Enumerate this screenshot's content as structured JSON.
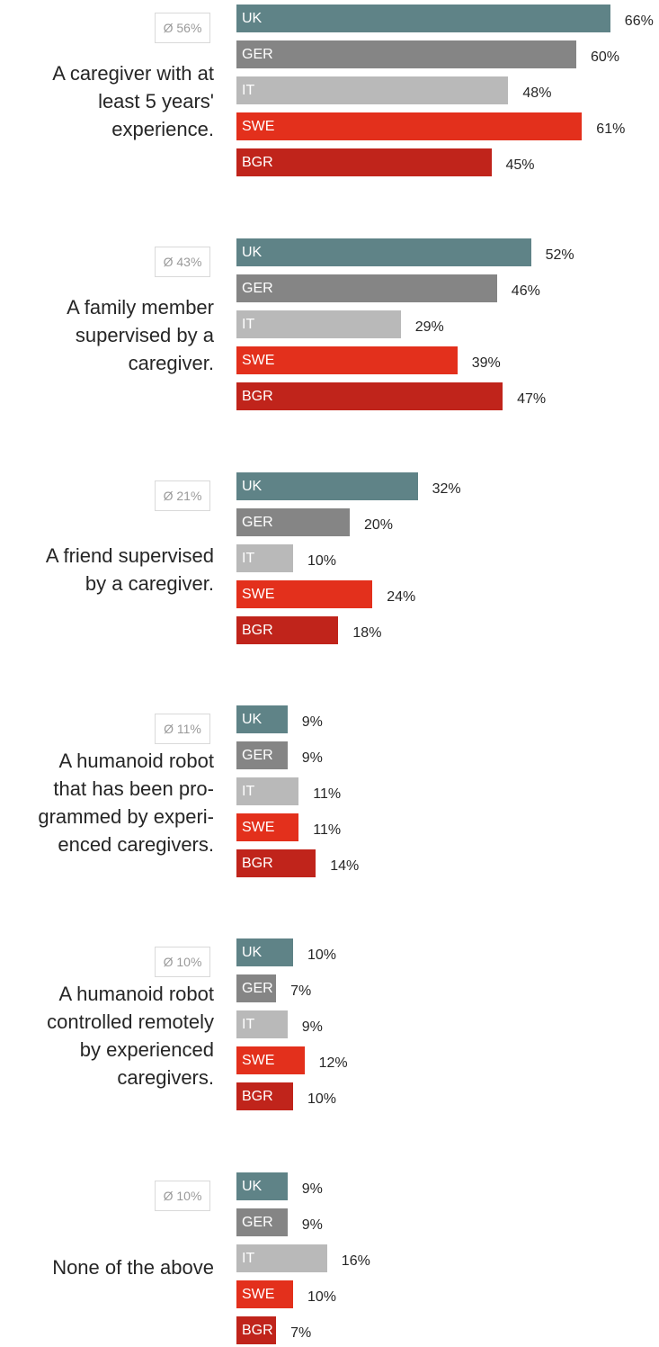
{
  "chart_data": {
    "type": "bar",
    "orientation": "horizontal",
    "series_colors": {
      "UK": "#5f8387",
      "GER": "#858585",
      "IT": "#b9b9b9",
      "SWE": "#e3301c",
      "BGR": "#c0241b"
    },
    "groups": [
      {
        "label": "A caregiver with at least 5 years' experience.",
        "average": "Ø 56%",
        "bars": [
          {
            "country": "UK",
            "value": 66,
            "label": "66%"
          },
          {
            "country": "GER",
            "value": 60,
            "label": "60%"
          },
          {
            "country": "IT",
            "value": 48,
            "label": "48%"
          },
          {
            "country": "SWE",
            "value": 61,
            "label": "61%"
          },
          {
            "country": "BGR",
            "value": 45,
            "label": "45%"
          }
        ]
      },
      {
        "label": "A family member supervised by a caregiver.",
        "average": "Ø 43%",
        "bars": [
          {
            "country": "UK",
            "value": 52,
            "label": "52%"
          },
          {
            "country": "GER",
            "value": 46,
            "label": "46%"
          },
          {
            "country": "IT",
            "value": 29,
            "label": "29%"
          },
          {
            "country": "SWE",
            "value": 39,
            "label": "39%"
          },
          {
            "country": "BGR",
            "value": 47,
            "label": "47%"
          }
        ]
      },
      {
        "label": "A friend supervised by a caregiver.",
        "average": "Ø 21%",
        "bars": [
          {
            "country": "UK",
            "value": 32,
            "label": "32%"
          },
          {
            "country": "GER",
            "value": 20,
            "label": "20%"
          },
          {
            "country": "IT",
            "value": 10,
            "label": "10%"
          },
          {
            "country": "SWE",
            "value": 24,
            "label": "24%"
          },
          {
            "country": "BGR",
            "value": 18,
            "label": "18%"
          }
        ]
      },
      {
        "label": "A humanoid robot that has been pro-grammed by experi-enced caregivers.",
        "average": "Ø 11%",
        "bars": [
          {
            "country": "UK",
            "value": 9,
            "label": "9%"
          },
          {
            "country": "GER",
            "value": 9,
            "label": "9%"
          },
          {
            "country": "IT",
            "value": 11,
            "label": "11%"
          },
          {
            "country": "SWE",
            "value": 11,
            "label": "11%"
          },
          {
            "country": "BGR",
            "value": 14,
            "label": "14%"
          }
        ]
      },
      {
        "label": "A humanoid robot controlled remotely by experienced caregivers.",
        "average": "Ø 10%",
        "bars": [
          {
            "country": "UK",
            "value": 10,
            "label": "10%"
          },
          {
            "country": "GER",
            "value": 7,
            "label": "7%"
          },
          {
            "country": "IT",
            "value": 9,
            "label": "9%"
          },
          {
            "country": "SWE",
            "value": 12,
            "label": "12%"
          },
          {
            "country": "BGR",
            "value": 10,
            "label": "10%"
          }
        ]
      },
      {
        "label": "None of the above",
        "average": "Ø 10%",
        "bars": [
          {
            "country": "UK",
            "value": 9,
            "label": "9%"
          },
          {
            "country": "GER",
            "value": 9,
            "label": "9%"
          },
          {
            "country": "IT",
            "value": 16,
            "label": "16%"
          },
          {
            "country": "SWE",
            "value": 10,
            "label": "10%"
          },
          {
            "country": "BGR",
            "value": 7,
            "label": "7%"
          }
        ]
      }
    ]
  }
}
